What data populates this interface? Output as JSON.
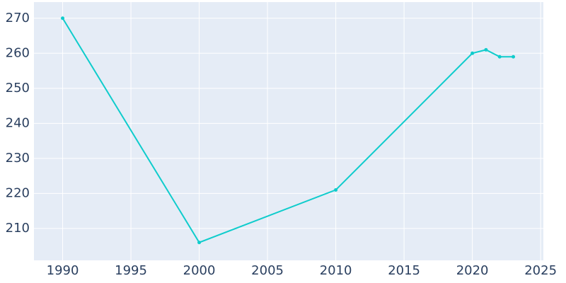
{
  "chart_data": {
    "type": "line",
    "x": [
      1990,
      2000,
      2010,
      2020,
      2021,
      2022,
      2023
    ],
    "series": [
      {
        "color": "#0fcccc",
        "values": [
          270,
          206,
          221,
          260,
          261,
          259,
          259
        ]
      }
    ],
    "xlim": [
      1987.9,
      2025.2
    ],
    "xticks": [
      1990,
      1995,
      2000,
      2005,
      2010,
      2015,
      2020,
      2025
    ],
    "ylim": [
      200.9,
      274.6
    ],
    "yticks": [
      210,
      220,
      230,
      240,
      250,
      260,
      270
    ],
    "grid": true
  }
}
